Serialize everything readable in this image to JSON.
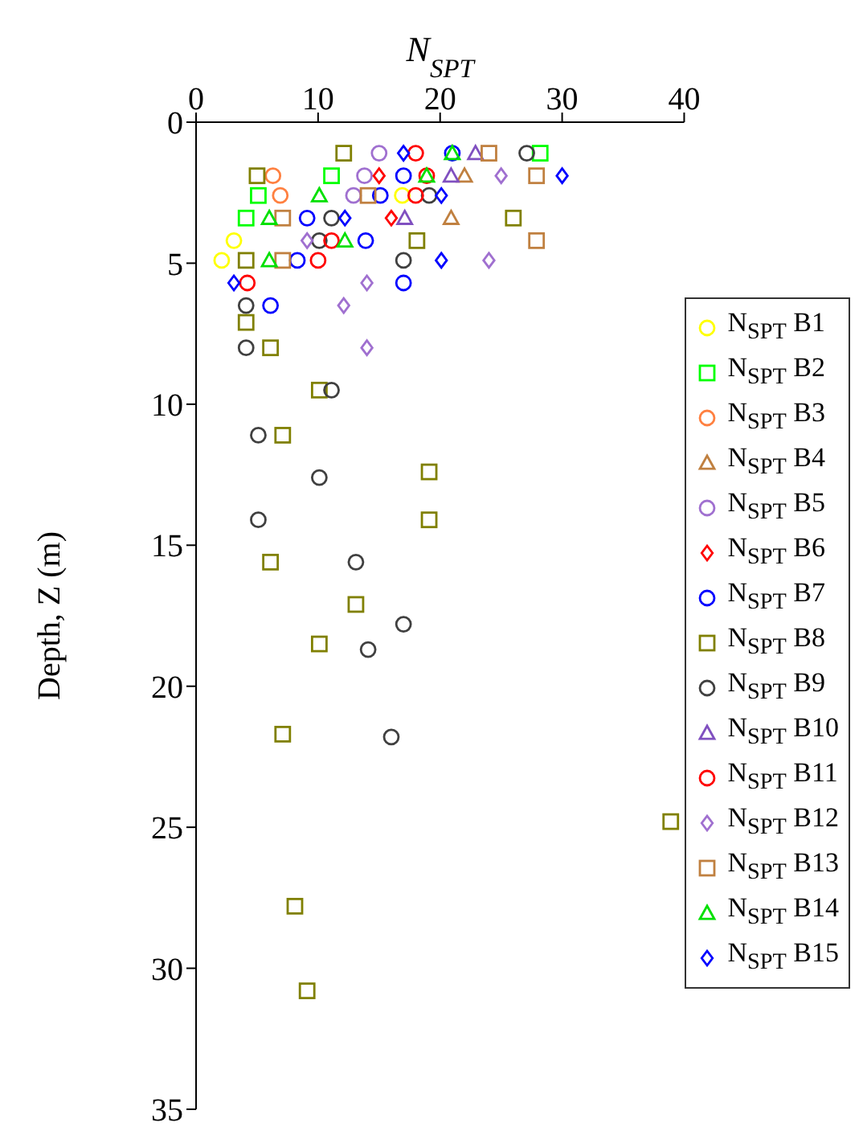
{
  "chart_data": {
    "type": "scatter",
    "xlabel": "N$_{SPT}$",
    "ylabel": "Depth, Z (m)",
    "xlim": [
      0,
      40
    ],
    "xticks": [
      0,
      10,
      20,
      30,
      40
    ],
    "ylim": [
      35,
      0
    ],
    "yticks": [
      0,
      5,
      10,
      15,
      20,
      25,
      30,
      35
    ],
    "legend": "right",
    "grid": false,
    "series": [
      {
        "name": "N$_{SPT}$ B1",
        "color": "#ffff00",
        "marker": "circle",
        "x": [
          16.9,
          3.1,
          2.1
        ],
        "values": [
          2.6,
          4.2,
          4.9
        ]
      },
      {
        "name": "N$_{SPT}$ B2",
        "color": "#00ff00",
        "marker": "square",
        "x": [
          28.2,
          11.1,
          5.1,
          4.1
        ],
        "values": [
          1.1,
          1.9,
          2.6,
          3.4
        ]
      },
      {
        "name": "N$_{SPT}$ B3",
        "color": "#ff8040",
        "marker": "circle",
        "x": [
          6.3,
          6.9
        ],
        "values": [
          1.9,
          2.6
        ]
      },
      {
        "name": "N$_{SPT}$ B4",
        "color": "#c08040",
        "marker": "triangle",
        "x": [
          22.0,
          20.9
        ],
        "values": [
          1.9,
          3.4
        ]
      },
      {
        "name": "N$_{SPT}$ B5",
        "color": "#a070d0",
        "marker": "circle",
        "x": [
          15.0,
          13.8,
          12.9
        ],
        "values": [
          1.1,
          1.9,
          2.6
        ]
      },
      {
        "name": "N$_{SPT}$ B6",
        "color": "#ff0000",
        "marker": "diamond",
        "x": [
          15.0,
          16.0
        ],
        "values": [
          1.9,
          3.4
        ]
      },
      {
        "name": "N$_{SPT}$ B7",
        "color": "#0000ff",
        "marker": "circle",
        "x": [
          21.0,
          17.0,
          15.1,
          9.1,
          13.9,
          8.3,
          17.0,
          6.1
        ],
        "values": [
          1.1,
          1.9,
          2.6,
          3.4,
          4.2,
          4.9,
          5.7,
          6.5
        ]
      },
      {
        "name": "N$_{SPT}$ B8",
        "color": "#808000",
        "marker": "square",
        "x": [
          12.1,
          5.0,
          26.0,
          18.1,
          4.1,
          4.1,
          6.1,
          10.1,
          7.1,
          19.1,
          19.1,
          6.1,
          13.1,
          10.1,
          7.1,
          38.9,
          8.1,
          9.1
        ],
        "values": [
          1.1,
          1.9,
          3.4,
          4.2,
          4.9,
          7.1,
          8.0,
          9.5,
          11.1,
          12.4,
          14.1,
          15.6,
          17.1,
          18.5,
          21.7,
          24.8,
          27.8,
          30.8
        ]
      },
      {
        "name": "N$_{SPT}$ B9",
        "color": "#404040",
        "marker": "circle",
        "x": [
          27.1,
          19.1,
          11.1,
          10.1,
          17.0,
          4.1,
          4.1,
          11.1,
          5.1,
          10.1,
          5.1,
          13.1,
          17.0,
          14.1,
          16.0
        ],
        "values": [
          1.1,
          2.6,
          3.4,
          4.2,
          4.9,
          6.5,
          8.0,
          9.5,
          11.1,
          12.6,
          14.1,
          15.6,
          17.8,
          18.7,
          21.8
        ]
      },
      {
        "name": "N$_{SPT}$ B10",
        "color": "#8050c0",
        "marker": "triangle",
        "x": [
          22.9,
          20.9,
          17.1
        ],
        "values": [
          1.1,
          1.9,
          3.4
        ]
      },
      {
        "name": "N$_{SPT}$ B11",
        "color": "#ff0000",
        "marker": "circle",
        "x": [
          18.0,
          18.9,
          18.0,
          11.1,
          10.0,
          4.2
        ],
        "values": [
          1.1,
          1.9,
          2.6,
          4.2,
          4.9,
          5.7
        ]
      },
      {
        "name": "N$_{SPT}$ B12",
        "color": "#a070d0",
        "marker": "diamond",
        "x": [
          25.0,
          9.1,
          24.0,
          14.0,
          12.1,
          14.0
        ],
        "values": [
          1.9,
          4.2,
          4.9,
          5.7,
          6.5,
          8.0
        ]
      },
      {
        "name": "N$_{SPT}$ B13",
        "color": "#c08040",
        "marker": "square",
        "x": [
          24.0,
          27.9,
          14.1,
          7.1,
          27.9,
          7.1
        ],
        "values": [
          1.1,
          1.9,
          2.6,
          3.4,
          4.2,
          4.9
        ]
      },
      {
        "name": "N$_{SPT}$ B14",
        "color": "#00e000",
        "marker": "triangle",
        "x": [
          21.0,
          18.9,
          10.1,
          6.0,
          12.2,
          6.0
        ],
        "values": [
          1.1,
          1.9,
          2.6,
          3.4,
          4.2,
          4.9
        ]
      },
      {
        "name": "N$_{SPT}$ B15",
        "color": "#0000ff",
        "marker": "diamond",
        "x": [
          17.0,
          30.0,
          20.1,
          12.2,
          20.1,
          3.1
        ],
        "values": [
          1.1,
          1.9,
          2.6,
          3.4,
          4.9,
          5.7
        ]
      }
    ]
  }
}
